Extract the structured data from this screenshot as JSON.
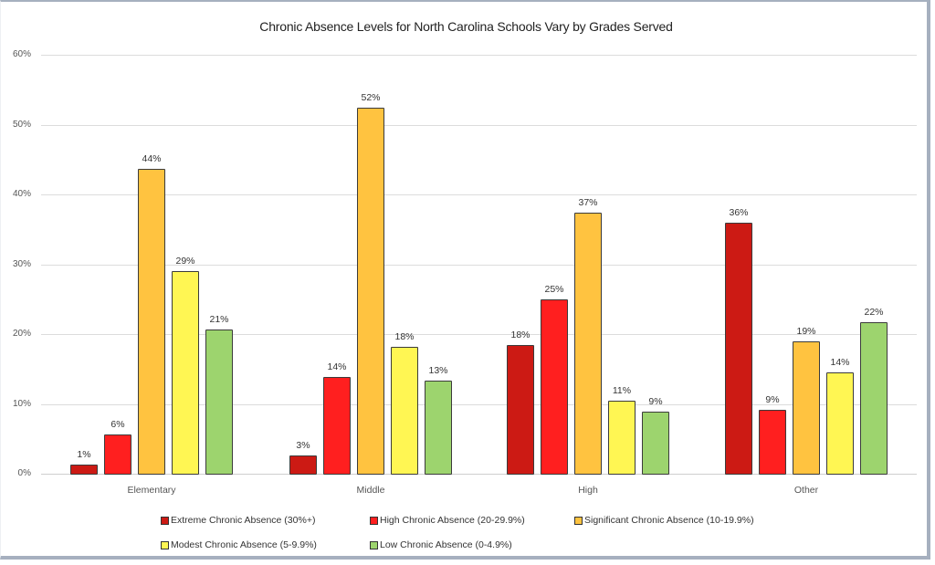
{
  "chart_data": {
    "type": "bar",
    "title": "Chronic Absence Levels for North Carolina Schools Vary by Grades Served",
    "xlabel": "",
    "ylabel": "",
    "ylim": [
      0,
      60
    ],
    "yticks": [
      "0%",
      "10%",
      "20%",
      "30%",
      "40%",
      "50%",
      "60%"
    ],
    "grid": true,
    "legend_position": "bottom",
    "categories": [
      "Elementary",
      "Middle",
      "High",
      "Other"
    ],
    "series": [
      {
        "name": "Extreme Chronic Absence (30%+)",
        "color": "#cc1a14",
        "values": [
          1.3,
          2.6,
          18.4,
          36.0
        ],
        "labels": [
          "1%",
          "3%",
          "18%",
          "36%"
        ]
      },
      {
        "name": "High Chronic Absence (20-29.9%)",
        "color": "#ff1f1f",
        "values": [
          5.6,
          13.9,
          25.0,
          9.2
        ],
        "labels": [
          "6%",
          "14%",
          "25%",
          "9%"
        ]
      },
      {
        "name": "Significant Chronic Absence (10-19.9%)",
        "color": "#ffc340",
        "values": [
          43.6,
          52.4,
          37.4,
          19.0
        ],
        "labels": [
          "44%",
          "52%",
          "37%",
          "19%"
        ]
      },
      {
        "name": "Modest Chronic Absence (5-9.9%)",
        "color": "#fff653",
        "values": [
          29.0,
          18.2,
          10.5,
          14.5
        ],
        "labels": [
          "29%",
          "18%",
          "11%",
          "14%"
        ]
      },
      {
        "name": "Low Chronic Absence (0-4.9%)",
        "color": "#9dd46e",
        "values": [
          20.6,
          13.3,
          8.9,
          21.7
        ],
        "labels": [
          "21%",
          "13%",
          "9%",
          "22%"
        ]
      }
    ]
  }
}
